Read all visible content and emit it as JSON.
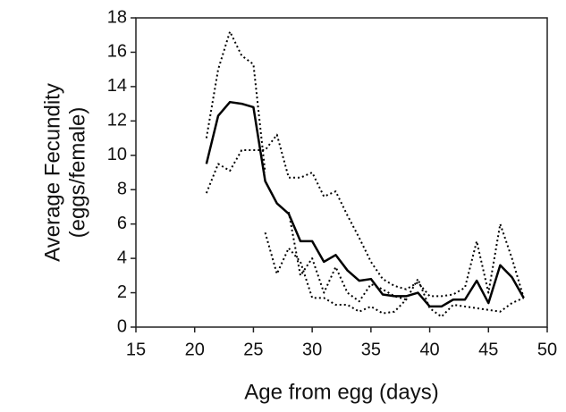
{
  "chart_data": {
    "type": "line",
    "xlabel": "Age from egg (days)",
    "ylabel": [
      "Average Fecundity",
      "(eggs/female)"
    ],
    "xlim": [
      15,
      50
    ],
    "xticks": [
      15,
      20,
      25,
      30,
      35,
      40,
      45,
      50
    ],
    "ylim": [
      0,
      18
    ],
    "yticks": [
      0,
      2,
      4,
      6,
      8,
      10,
      12,
      14,
      16,
      18
    ],
    "series": [
      {
        "color": "#000000",
        "style": "solid",
        "x": [
          21,
          22,
          23,
          24,
          25,
          26,
          27,
          28,
          29,
          30,
          31,
          32,
          33,
          34,
          35,
          36,
          37,
          38,
          39,
          40,
          41,
          42,
          43,
          44,
          45,
          46,
          47,
          48
        ],
        "values": [
          9.5,
          12.3,
          13.1,
          13,
          12.8,
          8.5,
          7.2,
          6.6,
          5,
          5,
          3.8,
          4.2,
          3.3,
          2.7,
          2.8,
          1.9,
          1.8,
          1.8,
          2,
          1.2,
          1.2,
          1.6,
          1.6,
          2.7,
          1.4,
          3.6,
          2.9,
          1.7
        ]
      },
      {
        "color": "#000000",
        "style": "dotted",
        "x": [
          21,
          22,
          23,
          24,
          25,
          26
        ],
        "values": [
          11,
          15,
          17.2,
          15.8,
          15.3,
          9
        ]
      },
      {
        "color": "#000000",
        "style": "dotted",
        "x": [
          21,
          22,
          23,
          24,
          25,
          26,
          27,
          28,
          29,
          30,
          31,
          32,
          33,
          34,
          35,
          36,
          37,
          38,
          39,
          40,
          41,
          42,
          43,
          44,
          45,
          46,
          47,
          48
        ],
        "values": [
          7.8,
          9.5,
          9.1,
          10.3,
          10.3,
          10.3,
          11.2,
          8.7,
          8.7,
          9,
          7.6,
          7.9,
          6.5,
          5.2,
          3.8,
          2.8,
          2.4,
          2.2,
          2.6,
          1.8,
          1.8,
          1.9,
          2.3,
          5,
          2,
          6,
          4,
          1.7
        ]
      },
      {
        "color": "#000000",
        "style": "dotted",
        "x": [
          26,
          27,
          28,
          29,
          30,
          31,
          32,
          33,
          34,
          35,
          36,
          37,
          38,
          39,
          40,
          41,
          42,
          43,
          44,
          45,
          46,
          47,
          48
        ],
        "values": [
          5.5,
          3.1,
          4.6,
          3.8,
          1.7,
          1.7,
          1.3,
          1.3,
          0.9,
          1.2,
          0.8,
          0.9,
          1.6,
          2.8,
          1.1,
          0.6,
          1.3,
          1.2,
          1.1,
          1,
          0.9,
          1.4,
          1.7
        ]
      },
      {
        "color": "#000000",
        "style": "dotted",
        "x": [
          28,
          29,
          30,
          31,
          32,
          33,
          34,
          35,
          36,
          37,
          38
        ],
        "values": [
          6.7,
          3,
          4,
          2,
          3.5,
          2,
          1.5,
          2.5,
          2.2,
          1.8,
          1.6
        ]
      }
    ]
  }
}
